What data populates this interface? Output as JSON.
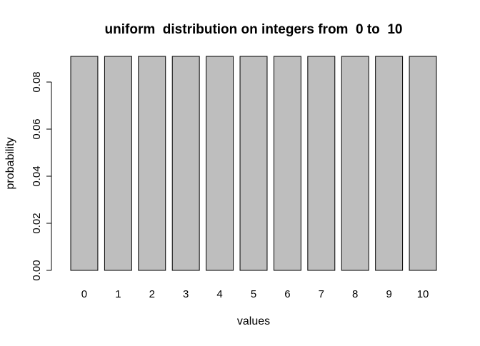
{
  "chart_data": {
    "type": "bar",
    "title": "uniform  distribution on integers from  0 to  10",
    "xlabel": "values",
    "ylabel": "probability",
    "categories": [
      "0",
      "1",
      "2",
      "3",
      "4",
      "5",
      "6",
      "7",
      "8",
      "9",
      "10"
    ],
    "values": [
      0.0909,
      0.0909,
      0.0909,
      0.0909,
      0.0909,
      0.0909,
      0.0909,
      0.0909,
      0.0909,
      0.0909,
      0.0909
    ],
    "ylim": [
      0,
      0.09
    ],
    "y_ticks": [
      "0.00",
      "0.02",
      "0.04",
      "0.06",
      "0.08"
    ],
    "grid": false,
    "bar_color": "#bebebe",
    "bar_border_color": "#000000"
  }
}
